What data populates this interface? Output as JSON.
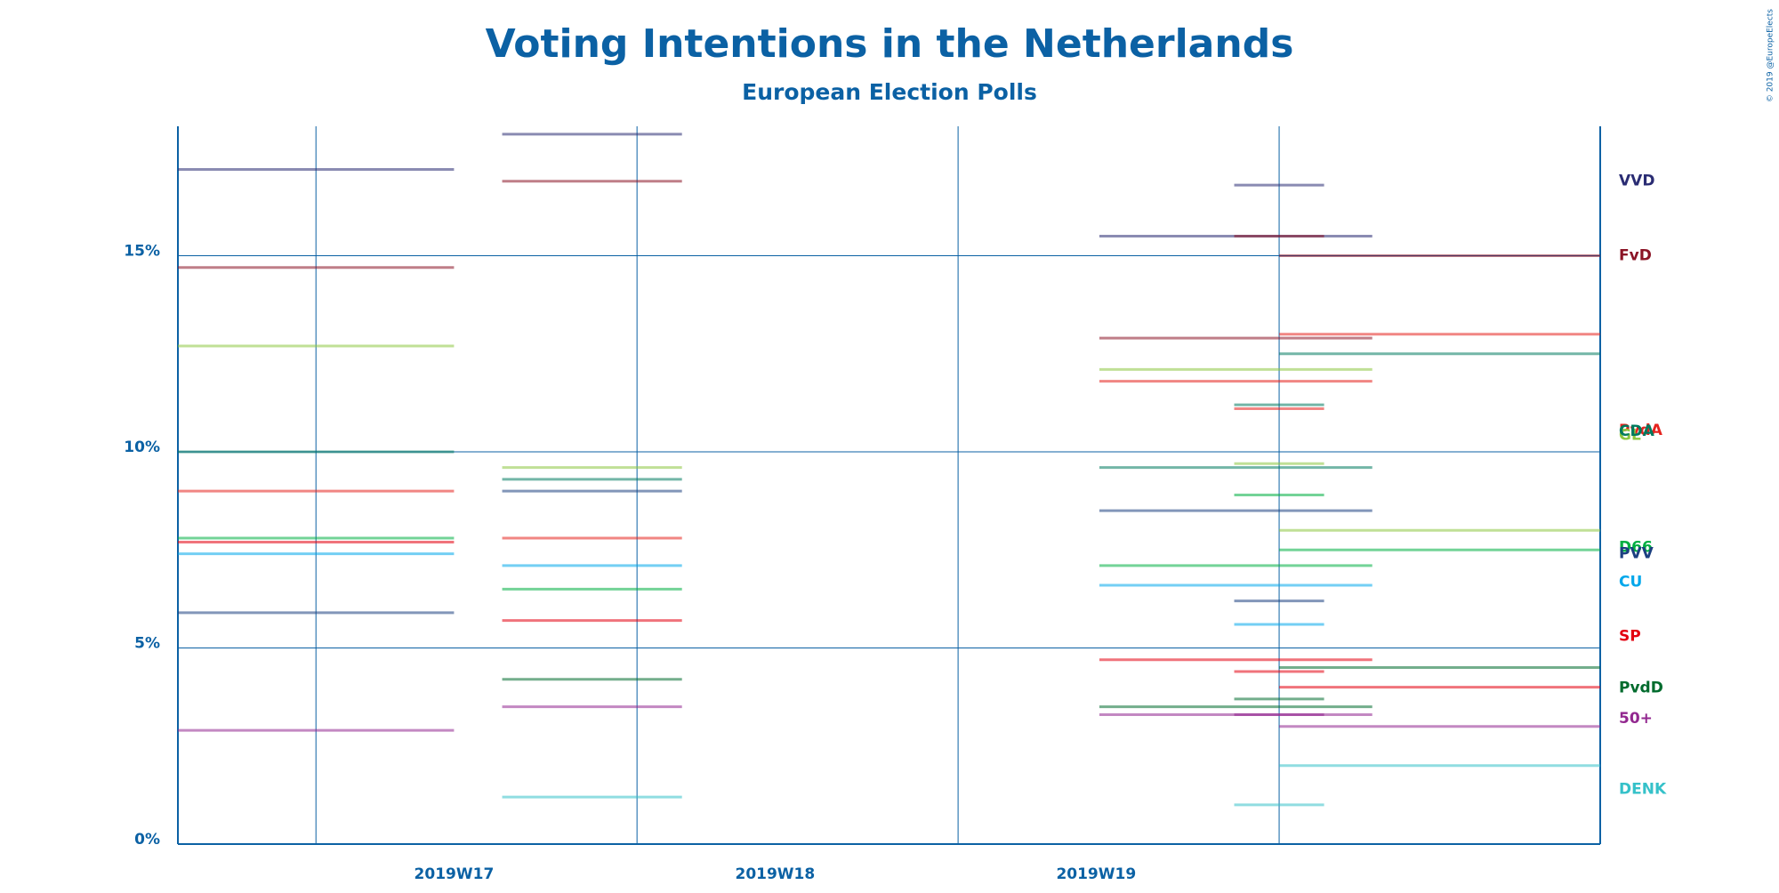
{
  "chart_data": {
    "type": "poll-ranges",
    "title": "Voting Intentions in the Netherlands",
    "subtitle": "European Election Polls",
    "credit": "© 2019 @EuropeElects",
    "xlim": [
      16.57,
      21.0
    ],
    "xgrid": [
      17,
      18,
      19,
      20
    ],
    "xticks": [
      {
        "value": 17.43,
        "label": "2019W17"
      },
      {
        "value": 18.43,
        "label": "2019W18"
      },
      {
        "value": 19.43,
        "label": "2019W19"
      }
    ],
    "ylim": [
      0,
      18.3
    ],
    "yticks": [
      {
        "value": 0,
        "label": "0%"
      },
      {
        "value": 5,
        "label": "5%"
      },
      {
        "value": 10,
        "label": "10%"
      },
      {
        "value": 15,
        "label": "15%"
      }
    ],
    "grid": true,
    "series": [
      {
        "name": "VVD",
        "color": "#2a2c73",
        "segments": [
          {
            "start": 16.57,
            "end": 17.43,
            "value": 17.2
          },
          {
            "start": 17.58,
            "end": 18.14,
            "value": 18.1
          },
          {
            "start": 19.44,
            "end": 20.29,
            "value": 15.5
          },
          {
            "start": 19.86,
            "end": 20.14,
            "value": 16.8
          }
        ]
      },
      {
        "name": "FvD",
        "color": "#8b1426",
        "segments": [
          {
            "start": 16.57,
            "end": 17.43,
            "value": 14.7
          },
          {
            "start": 17.58,
            "end": 18.14,
            "value": 16.9
          },
          {
            "start": 19.44,
            "end": 20.29,
            "value": 12.9
          },
          {
            "start": 19.86,
            "end": 20.14,
            "value": 15.5
          },
          {
            "start": 20.0,
            "end": 21.0,
            "value": 15.0
          }
        ]
      },
      {
        "name": "PvdA",
        "color": "#e5231e",
        "segments": [
          {
            "start": 16.57,
            "end": 17.43,
            "value": 9.0
          },
          {
            "start": 17.58,
            "end": 18.14,
            "value": 7.8
          },
          {
            "start": 19.44,
            "end": 20.29,
            "value": 11.8
          },
          {
            "start": 19.86,
            "end": 20.14,
            "value": 11.1
          },
          {
            "start": 20.0,
            "end": 21.0,
            "value": 13.0
          }
        ]
      },
      {
        "name": "GL",
        "color": "#8dc63f",
        "segments": [
          {
            "start": 16.57,
            "end": 17.43,
            "value": 12.7
          },
          {
            "start": 17.58,
            "end": 18.14,
            "value": 9.6
          },
          {
            "start": 19.44,
            "end": 20.29,
            "value": 12.1
          },
          {
            "start": 19.86,
            "end": 20.14,
            "value": 9.7
          },
          {
            "start": 20.0,
            "end": 21.0,
            "value": 8.0
          }
        ]
      },
      {
        "name": "CDA",
        "color": "#007a5e",
        "segments": [
          {
            "start": 16.57,
            "end": 17.43,
            "value": 10.0
          },
          {
            "start": 17.58,
            "end": 18.14,
            "value": 9.3
          },
          {
            "start": 19.44,
            "end": 20.29,
            "value": 9.6
          },
          {
            "start": 19.86,
            "end": 20.14,
            "value": 11.2
          },
          {
            "start": 20.0,
            "end": 21.0,
            "value": 12.5
          }
        ]
      },
      {
        "name": "D66",
        "color": "#00ae41",
        "segments": [
          {
            "start": 16.57,
            "end": 17.43,
            "value": 7.8
          },
          {
            "start": 17.58,
            "end": 18.14,
            "value": 6.5
          },
          {
            "start": 19.44,
            "end": 20.29,
            "value": 7.1
          },
          {
            "start": 19.86,
            "end": 20.14,
            "value": 8.9
          },
          {
            "start": 20.0,
            "end": 21.0,
            "value": 7.5
          }
        ]
      },
      {
        "name": "CU",
        "color": "#00a7eb",
        "segments": [
          {
            "start": 16.57,
            "end": 17.43,
            "value": 7.4
          },
          {
            "start": 17.58,
            "end": 18.14,
            "value": 7.1
          },
          {
            "start": 19.44,
            "end": 20.29,
            "value": 6.6
          },
          {
            "start": 19.86,
            "end": 20.14,
            "value": 5.6
          }
        ]
      },
      {
        "name": "PVV",
        "color": "#1c3f80",
        "segments": [
          {
            "start": 16.57,
            "end": 17.43,
            "value": 5.9
          },
          {
            "start": 17.58,
            "end": 18.14,
            "value": 9.0
          },
          {
            "start": 19.44,
            "end": 20.29,
            "value": 8.5
          },
          {
            "start": 19.86,
            "end": 20.14,
            "value": 6.2
          }
        ]
      },
      {
        "name": "SP",
        "color": "#e3000f",
        "segments": [
          {
            "start": 16.57,
            "end": 17.43,
            "value": 7.7
          },
          {
            "start": 17.58,
            "end": 18.14,
            "value": 5.7
          },
          {
            "start": 19.44,
            "end": 20.29,
            "value": 4.7
          },
          {
            "start": 19.86,
            "end": 20.14,
            "value": 4.4
          },
          {
            "start": 20.0,
            "end": 21.0,
            "value": 4.0
          }
        ]
      },
      {
        "name": "PvdD",
        "color": "#006b2d",
        "segments": [
          {
            "start": 17.58,
            "end": 18.14,
            "value": 4.2
          },
          {
            "start": 19.44,
            "end": 20.29,
            "value": 3.5
          },
          {
            "start": 19.86,
            "end": 20.14,
            "value": 3.7
          },
          {
            "start": 20.0,
            "end": 21.0,
            "value": 4.5
          }
        ]
      },
      {
        "name": "50+",
        "color": "#92278f",
        "segments": [
          {
            "start": 16.57,
            "end": 17.43,
            "value": 2.9
          },
          {
            "start": 17.58,
            "end": 18.14,
            "value": 3.5
          },
          {
            "start": 19.44,
            "end": 20.29,
            "value": 3.3
          },
          {
            "start": 19.86,
            "end": 20.14,
            "value": 3.3
          },
          {
            "start": 20.0,
            "end": 21.0,
            "value": 3.0
          }
        ]
      },
      {
        "name": "DENK",
        "color": "#35c1c9",
        "segments": [
          {
            "start": 17.58,
            "end": 18.14,
            "value": 1.2
          },
          {
            "start": 19.86,
            "end": 20.14,
            "value": 1.0
          },
          {
            "start": 20.0,
            "end": 21.0,
            "value": 2.0
          }
        ]
      }
    ]
  }
}
